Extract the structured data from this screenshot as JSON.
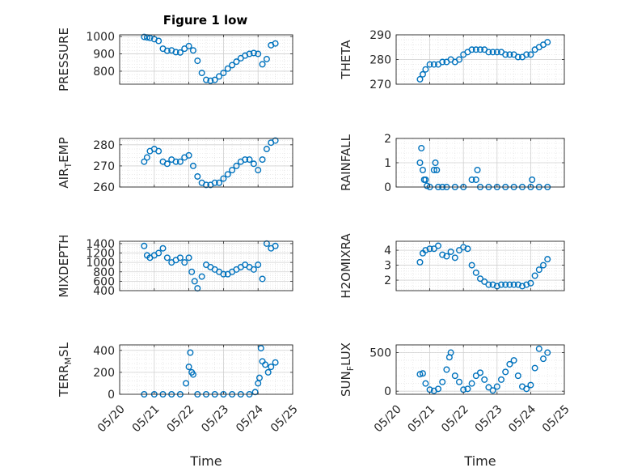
{
  "figure": {
    "title": "Figure 1 low",
    "colors": {
      "marker": "#0072BD",
      "axis": "#262626",
      "grid": "#dcdcdc"
    }
  },
  "chart_data": [
    {
      "type": "scatter",
      "ylabel": "PRESSURE",
      "title": "Figure 1 low",
      "ylim": [
        725,
        1010
      ],
      "yticks": [
        800,
        900,
        1000
      ],
      "show_xticklabels": false,
      "grid": true,
      "x": [
        "05/20 17:00",
        "05/20 19:00",
        "05/20 21:00",
        "05/21 00:00",
        "05/21 03:00",
        "05/21 06:00",
        "05/21 09:00",
        "05/21 12:00",
        "05/21 15:00",
        "05/21 18:00",
        "05/21 21:00",
        "05/22 00:00",
        "05/22 03:00",
        "05/22 06:00",
        "05/22 09:00",
        "05/22 12:00",
        "05/22 15:00",
        "05/22 18:00",
        "05/22 21:00",
        "05/23 00:00",
        "05/23 03:00",
        "05/23 06:00",
        "05/23 09:00",
        "05/23 12:00",
        "05/23 15:00",
        "05/23 18:00",
        "05/23 21:00",
        "05/24 00:00",
        "05/24 03:00",
        "05/24 06:00",
        "05/24 09:00",
        "05/24 12:00"
      ],
      "y": [
        998,
        995,
        992,
        985,
        975,
        930,
        918,
        920,
        910,
        908,
        930,
        945,
        920,
        860,
        790,
        750,
        745,
        750,
        770,
        790,
        815,
        835,
        855,
        875,
        890,
        900,
        905,
        900,
        840,
        870,
        950,
        960
      ]
    },
    {
      "type": "scatter",
      "ylabel": "THETA",
      "ylim": [
        270,
        290
      ],
      "yticks": [
        270,
        280,
        290
      ],
      "show_xticklabels": false,
      "grid": true,
      "x": [
        "05/20 17:00",
        "05/20 19:00",
        "05/20 21:00",
        "05/21 00:00",
        "05/21 03:00",
        "05/21 06:00",
        "05/21 09:00",
        "05/21 12:00",
        "05/21 15:00",
        "05/21 18:00",
        "05/21 21:00",
        "05/22 00:00",
        "05/22 03:00",
        "05/22 06:00",
        "05/22 09:00",
        "05/22 12:00",
        "05/22 15:00",
        "05/22 18:00",
        "05/22 21:00",
        "05/23 00:00",
        "05/23 03:00",
        "05/23 06:00",
        "05/23 09:00",
        "05/23 12:00",
        "05/23 15:00",
        "05/23 18:00",
        "05/23 21:00",
        "05/24 00:00",
        "05/24 03:00",
        "05/24 06:00",
        "05/24 09:00",
        "05/24 12:00"
      ],
      "y": [
        272,
        274,
        276,
        278,
        278,
        278,
        279,
        279,
        280,
        279,
        280,
        282,
        283,
        284,
        284,
        284,
        284,
        283,
        283,
        283,
        283,
        282,
        282,
        282,
        281,
        281,
        282,
        282,
        284,
        285,
        286,
        287
      ]
    },
    {
      "type": "scatter",
      "ylabel": "AIR_TEMP",
      "ylabel_main": "AIR",
      "ylabel_sub": "T",
      "ylabel_rest": "EMP",
      "ylim": [
        260,
        283
      ],
      "yticks": [
        260,
        270,
        280
      ],
      "show_xticklabels": false,
      "grid": true,
      "x": [
        "05/20 17:00",
        "05/20 19:00",
        "05/20 21:00",
        "05/21 00:00",
        "05/21 03:00",
        "05/21 06:00",
        "05/21 09:00",
        "05/21 12:00",
        "05/21 15:00",
        "05/21 18:00",
        "05/21 21:00",
        "05/22 00:00",
        "05/22 03:00",
        "05/22 06:00",
        "05/22 09:00",
        "05/22 12:00",
        "05/22 15:00",
        "05/22 18:00",
        "05/22 21:00",
        "05/23 00:00",
        "05/23 03:00",
        "05/23 06:00",
        "05/23 09:00",
        "05/23 12:00",
        "05/23 15:00",
        "05/23 18:00",
        "05/23 21:00",
        "05/24 00:00",
        "05/24 03:00",
        "05/24 06:00",
        "05/24 09:00",
        "05/24 12:00"
      ],
      "y": [
        272,
        274,
        277,
        278,
        277,
        272,
        271,
        273,
        272,
        272,
        274,
        275,
        270,
        265,
        262,
        261,
        261,
        262,
        262,
        264,
        266,
        268,
        270,
        272,
        273,
        273,
        271,
        268,
        273,
        278,
        281,
        282
      ]
    },
    {
      "type": "scatter",
      "ylabel": "RAINFALL",
      "ylim": [
        0,
        2
      ],
      "yticks": [
        0,
        1,
        2
      ],
      "show_xticklabels": false,
      "grid": true,
      "x": [
        "05/20 17:00",
        "05/20 18:00",
        "05/20 19:00",
        "05/20 20:00",
        "05/20 21:00",
        "05/20 22:00",
        "05/21 00:00",
        "05/21 03:00",
        "05/21 04:00",
        "05/21 05:00",
        "05/21 06:00",
        "05/21 09:00",
        "05/21 12:00",
        "05/21 18:00",
        "05/22 00:00",
        "05/22 06:00",
        "05/22 09:00",
        "05/22 10:00",
        "05/22 12:00",
        "05/22 18:00",
        "05/23 00:00",
        "05/23 06:00",
        "05/23 12:00",
        "05/23 18:00",
        "05/24 00:00",
        "05/24 01:00",
        "05/24 06:00",
        "05/24 12:00"
      ],
      "y": [
        1.0,
        1.6,
        0.7,
        0.3,
        0.3,
        0.05,
        0,
        0.7,
        1.0,
        0.7,
        0,
        0,
        0,
        0,
        0,
        0.3,
        0.3,
        0.7,
        0,
        0,
        0,
        0,
        0,
        0,
        0,
        0.3,
        0,
        0
      ]
    },
    {
      "type": "scatter",
      "ylabel": "MIXDEPTH",
      "ylim": [
        400,
        1450
      ],
      "yticks": [
        400,
        600,
        800,
        1000,
        1200,
        1400
      ],
      "show_xticklabels": false,
      "grid": true,
      "x": [
        "05/20 17:00",
        "05/20 19:00",
        "05/20 21:00",
        "05/21 00:00",
        "05/21 03:00",
        "05/21 06:00",
        "05/21 09:00",
        "05/21 12:00",
        "05/21 15:00",
        "05/21 18:00",
        "05/21 21:00",
        "05/22 00:00",
        "05/22 02:00",
        "05/22 04:00",
        "05/22 06:00",
        "05/22 09:00",
        "05/22 12:00",
        "05/22 15:00",
        "05/22 18:00",
        "05/22 21:00",
        "05/23 00:00",
        "05/23 03:00",
        "05/23 06:00",
        "05/23 09:00",
        "05/23 12:00",
        "05/23 15:00",
        "05/23 18:00",
        "05/23 21:00",
        "05/24 00:00",
        "05/24 03:00",
        "05/24 06:00",
        "05/24 09:00",
        "05/24 12:00"
      ],
      "y": [
        1350,
        1150,
        1100,
        1150,
        1200,
        1300,
        1100,
        1000,
        1050,
        1100,
        1000,
        1100,
        800,
        600,
        450,
        700,
        950,
        900,
        850,
        800,
        750,
        750,
        800,
        850,
        900,
        950,
        900,
        850,
        950,
        650,
        1400,
        1300,
        1350
      ]
    },
    {
      "type": "scatter",
      "ylabel": "H2OMIXRA",
      "ylim": [
        1.3,
        4.6
      ],
      "yticks": [
        2,
        3,
        4
      ],
      "show_xticklabels": false,
      "grid": true,
      "x": [
        "05/20 17:00",
        "05/20 19:00",
        "05/20 21:00",
        "05/21 00:00",
        "05/21 03:00",
        "05/21 06:00",
        "05/21 09:00",
        "05/21 12:00",
        "05/21 15:00",
        "05/21 18:00",
        "05/21 21:00",
        "05/22 00:00",
        "05/22 03:00",
        "05/22 06:00",
        "05/22 09:00",
        "05/22 12:00",
        "05/22 15:00",
        "05/22 18:00",
        "05/22 21:00",
        "05/23 00:00",
        "05/23 03:00",
        "05/23 06:00",
        "05/23 09:00",
        "05/23 12:00",
        "05/23 15:00",
        "05/23 18:00",
        "05/23 21:00",
        "05/24 00:00",
        "05/24 03:00",
        "05/24 06:00",
        "05/24 09:00",
        "05/24 12:00"
      ],
      "y": [
        3.2,
        3.8,
        4.0,
        4.1,
        4.1,
        4.3,
        3.7,
        3.6,
        3.9,
        3.5,
        4.0,
        4.2,
        4.1,
        3.0,
        2.5,
        2.1,
        1.9,
        1.7,
        1.7,
        1.6,
        1.7,
        1.7,
        1.7,
        1.7,
        1.7,
        1.6,
        1.7,
        1.8,
        2.3,
        2.7,
        3.0,
        3.4
      ]
    },
    {
      "type": "scatter",
      "ylabel": "TERR_MSL",
      "ylabel_main": "TERR",
      "ylabel_sub": "M",
      "ylabel_rest": "SL",
      "ylim": [
        0,
        450
      ],
      "yticks": [
        0,
        200,
        400
      ],
      "show_xticklabels": true,
      "grid": true,
      "xlabel": "Time",
      "x": [
        "05/20 17:00",
        "05/21 00:00",
        "05/21 06:00",
        "05/21 12:00",
        "05/21 18:00",
        "05/21 22:00",
        "05/22 00:00",
        "05/22 01:00",
        "05/22 02:00",
        "05/22 03:00",
        "05/22 06:00",
        "05/22 12:00",
        "05/22 18:00",
        "05/23 00:00",
        "05/23 06:00",
        "05/23 12:00",
        "05/23 18:00",
        "05/23 22:00",
        "05/24 00:00",
        "05/24 01:00",
        "05/24 02:00",
        "05/24 03:00",
        "05/24 05:00",
        "05/24 07:00",
        "05/24 09:00",
        "05/24 12:00"
      ],
      "y": [
        0,
        0,
        0,
        0,
        0,
        100,
        250,
        380,
        200,
        180,
        0,
        0,
        0,
        0,
        0,
        0,
        0,
        20,
        100,
        150,
        420,
        300,
        270,
        200,
        250,
        290
      ]
    },
    {
      "type": "scatter",
      "ylabel": "SUN_FLUX",
      "ylabel_main": "SUN",
      "ylabel_sub": "F",
      "ylabel_rest": "LUX",
      "ylim": [
        -40,
        600
      ],
      "yticks": [
        0,
        500
      ],
      "show_xticklabels": true,
      "grid": true,
      "xlabel": "Time",
      "x": [
        "05/20 17:00",
        "05/20 19:00",
        "05/20 21:00",
        "05/21 00:00",
        "05/21 03:00",
        "05/21 06:00",
        "05/21 09:00",
        "05/21 12:00",
        "05/21 14:00",
        "05/21 15:00",
        "05/21 18:00",
        "05/21 21:00",
        "05/22 00:00",
        "05/22 03:00",
        "05/22 06:00",
        "05/22 09:00",
        "05/22 12:00",
        "05/22 15:00",
        "05/22 18:00",
        "05/22 21:00",
        "05/23 00:00",
        "05/23 03:00",
        "05/23 06:00",
        "05/23 09:00",
        "05/23 12:00",
        "05/23 15:00",
        "05/23 18:00",
        "05/23 21:00",
        "05/24 00:00",
        "05/24 03:00",
        "05/24 06:00",
        "05/24 09:00",
        "05/24 12:00"
      ],
      "y": [
        220,
        230,
        100,
        20,
        5,
        30,
        120,
        280,
        440,
        500,
        200,
        120,
        20,
        30,
        100,
        200,
        240,
        150,
        50,
        10,
        60,
        150,
        250,
        350,
        400,
        200,
        60,
        30,
        80,
        300,
        550,
        420,
        500
      ]
    }
  ],
  "xaxis": {
    "xlim": [
      "05/20 00:00",
      "05/25 00:00"
    ],
    "ticks": [
      "05/20",
      "05/21",
      "05/22",
      "05/23",
      "05/24",
      "05/25"
    ]
  }
}
